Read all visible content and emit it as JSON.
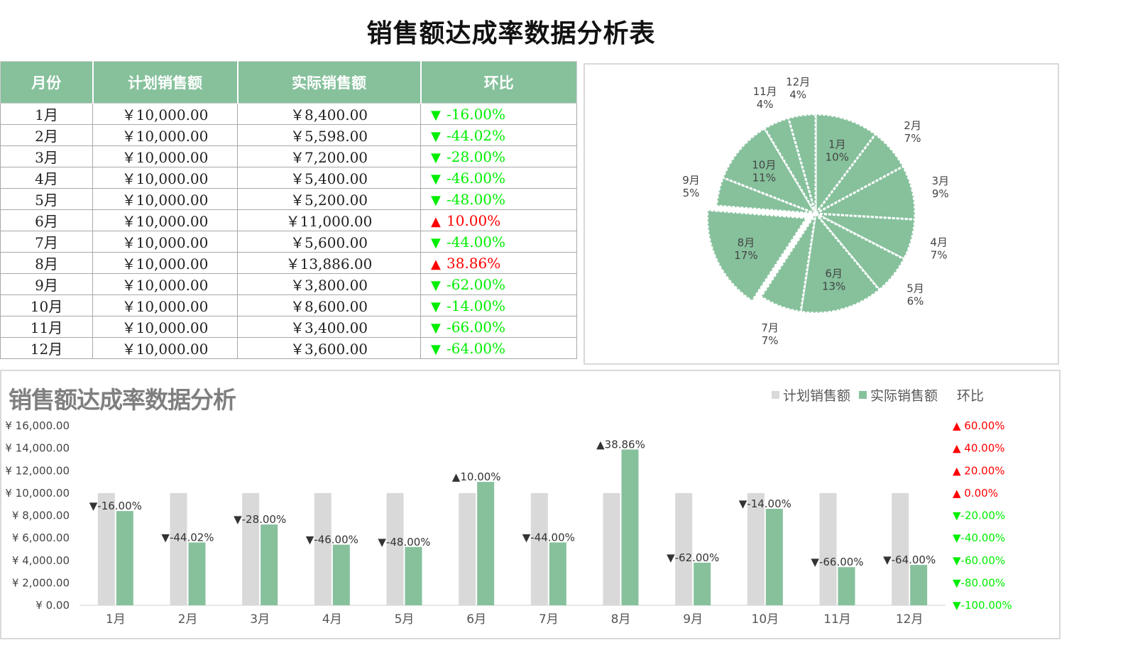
{
  "title": "销售额达成率数据分析表",
  "colors": {
    "header_bg": "#86c19c",
    "plan": "#d9d9d9",
    "actual": "#86c19c",
    "down": "#00ee00",
    "up": "#ff0000"
  },
  "table": {
    "headers": [
      "月份",
      "计划销售额",
      "实际销售额",
      "环比"
    ],
    "rows": [
      {
        "month": "1月",
        "plan": "￥10,000.00",
        "actual": "￥8,400.00",
        "arrow": "▼",
        "ratio": "-16.00%",
        "dir": "down"
      },
      {
        "month": "2月",
        "plan": "￥10,000.00",
        "actual": "￥5,598.00",
        "arrow": "▼",
        "ratio": "-44.02%",
        "dir": "down"
      },
      {
        "month": "3月",
        "plan": "￥10,000.00",
        "actual": "￥7,200.00",
        "arrow": "▼",
        "ratio": "-28.00%",
        "dir": "down"
      },
      {
        "month": "4月",
        "plan": "￥10,000.00",
        "actual": "￥5,400.00",
        "arrow": "▼",
        "ratio": "-46.00%",
        "dir": "down"
      },
      {
        "month": "5月",
        "plan": "￥10,000.00",
        "actual": "￥5,200.00",
        "arrow": "▼",
        "ratio": "-48.00%",
        "dir": "down"
      },
      {
        "month": "6月",
        "plan": "￥10,000.00",
        "actual": "￥11,000.00",
        "arrow": "▲",
        "ratio": "10.00%",
        "dir": "up"
      },
      {
        "month": "7月",
        "plan": "￥10,000.00",
        "actual": "￥5,600.00",
        "arrow": "▼",
        "ratio": "-44.00%",
        "dir": "down"
      },
      {
        "month": "8月",
        "plan": "￥10,000.00",
        "actual": "￥13,886.00",
        "arrow": "▲",
        "ratio": "38.86%",
        "dir": "up"
      },
      {
        "month": "9月",
        "plan": "￥10,000.00",
        "actual": "￥3,800.00",
        "arrow": "▼",
        "ratio": "-62.00%",
        "dir": "down"
      },
      {
        "month": "10月",
        "plan": "￥10,000.00",
        "actual": "￥8,600.00",
        "arrow": "▼",
        "ratio": "-14.00%",
        "dir": "down"
      },
      {
        "month": "11月",
        "plan": "￥10,000.00",
        "actual": "￥3,400.00",
        "arrow": "▼",
        "ratio": "-66.00%",
        "dir": "down"
      },
      {
        "month": "12月",
        "plan": "￥10,000.00",
        "actual": "￥3,600.00",
        "arrow": "▼",
        "ratio": "-64.00%",
        "dir": "down"
      }
    ]
  },
  "chart_data": [
    {
      "type": "pie",
      "title": "",
      "categories": [
        "1月",
        "2月",
        "3月",
        "4月",
        "5月",
        "6月",
        "7月",
        "8月",
        "9月",
        "10月",
        "11月",
        "12月"
      ],
      "values": [
        8400,
        5598,
        7200,
        5400,
        5200,
        11000,
        5600,
        13886,
        3800,
        8600,
        3400,
        3600
      ],
      "percent_labels": [
        "10%",
        "7%",
        "9%",
        "7%",
        "6%",
        "13%",
        "7%",
        "17%",
        "5%",
        "11%",
        "4%",
        "4%"
      ],
      "exploded": [
        "8月"
      ]
    },
    {
      "type": "bar",
      "title": "销售额达成率数据分析",
      "categories": [
        "1月",
        "2月",
        "3月",
        "4月",
        "5月",
        "6月",
        "7月",
        "8月",
        "9月",
        "10月",
        "11月",
        "12月"
      ],
      "series": [
        {
          "name": "计划销售额",
          "values": [
            10000,
            10000,
            10000,
            10000,
            10000,
            10000,
            10000,
            10000,
            10000,
            10000,
            10000,
            10000
          ]
        },
        {
          "name": "实际销售额",
          "values": [
            8400,
            5598,
            7200,
            5400,
            5200,
            11000,
            5600,
            13886,
            3800,
            8600,
            3400,
            3600
          ]
        }
      ],
      "extra_legend": "环比",
      "data_labels": [
        "▼-16.00%",
        "▼-44.02%",
        "▼-28.00%",
        "▼-46.00%",
        "▼-48.00%",
        "▲10.00%",
        "▼-44.00%",
        "▲38.86%",
        "▼-62.00%",
        "▼-14.00%",
        "▼-66.00%",
        "▼-64.00%"
      ],
      "ylim": [
        0,
        16000
      ],
      "y_ticks": [
        "¥ 0.00",
        "¥ 2,000.00",
        "¥ 4,000.00",
        "¥ 6,000.00",
        "¥ 8,000.00",
        "¥ 10,000.00",
        "¥ 12,000.00",
        "¥ 14,000.00",
        "¥ 16,000.00"
      ],
      "y2_ticks": [
        {
          "label": "▼-100.00%",
          "dir": "down"
        },
        {
          "label": "▼-80.00%",
          "dir": "down"
        },
        {
          "label": "▼-60.00%",
          "dir": "down"
        },
        {
          "label": "▼-40.00%",
          "dir": "down"
        },
        {
          "label": "▼-20.00%",
          "dir": "down"
        },
        {
          "label": "▲ 0.00%",
          "dir": "up"
        },
        {
          "label": "▲ 20.00%",
          "dir": "up"
        },
        {
          "label": "▲ 40.00%",
          "dir": "up"
        },
        {
          "label": "▲ 60.00%",
          "dir": "up"
        }
      ],
      "legend_position": "top-right"
    }
  ]
}
